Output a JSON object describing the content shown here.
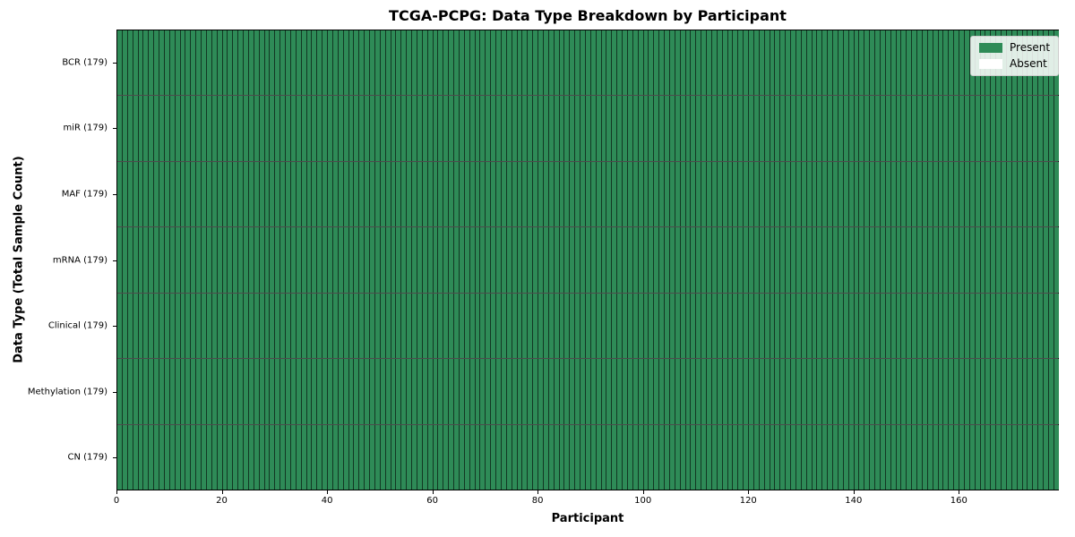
{
  "title": "TCGA-PCPG: Data Type Breakdown by Participant",
  "axes": {
    "x_label": "Participant",
    "y_label": "Data Type (Total Sample Count)"
  },
  "legend": {
    "position": "upper right",
    "items": [
      {
        "label": "Present",
        "color": "#2e8b57"
      },
      {
        "label": "Absent",
        "color": "#ffffff"
      }
    ]
  },
  "chart_data": {
    "type": "heatmap",
    "title": "TCGA-PCPG: Data Type Breakdown by Participant",
    "xlabel": "Participant",
    "ylabel": "Data Type (Total Sample Count)",
    "participants": 179,
    "xlim": [
      0,
      179
    ],
    "x_ticks": [
      0,
      20,
      40,
      60,
      80,
      100,
      120,
      140,
      160
    ],
    "grid": false,
    "legend_entries": [
      "Present",
      "Absent"
    ],
    "legend_position": "upper right",
    "colors": {
      "present": "#2e8b57",
      "absent": "#ffffff",
      "cell_edge": "rgba(0,0,0,0.60)",
      "row_divider": "rgba(0,0,0,0.70)"
    },
    "rows": [
      {
        "label": "BCR (179)",
        "data_type": "BCR",
        "total_samples": 179,
        "present_count": 179,
        "absent_count": 0
      },
      {
        "label": "miR (179)",
        "data_type": "miR",
        "total_samples": 179,
        "present_count": 179,
        "absent_count": 0
      },
      {
        "label": "MAF (179)",
        "data_type": "MAF",
        "total_samples": 179,
        "present_count": 179,
        "absent_count": 0
      },
      {
        "label": "mRNA (179)",
        "data_type": "mRNA",
        "total_samples": 179,
        "present_count": 179,
        "absent_count": 0
      },
      {
        "label": "Clinical (179)",
        "data_type": "Clinical",
        "total_samples": 179,
        "present_count": 179,
        "absent_count": 0
      },
      {
        "label": "Methylation (179)",
        "data_type": "Methylation",
        "total_samples": 179,
        "present_count": 179,
        "absent_count": 0
      },
      {
        "label": "CN (179)",
        "data_type": "CN",
        "total_samples": 179,
        "present_count": 179,
        "absent_count": 0
      }
    ]
  }
}
